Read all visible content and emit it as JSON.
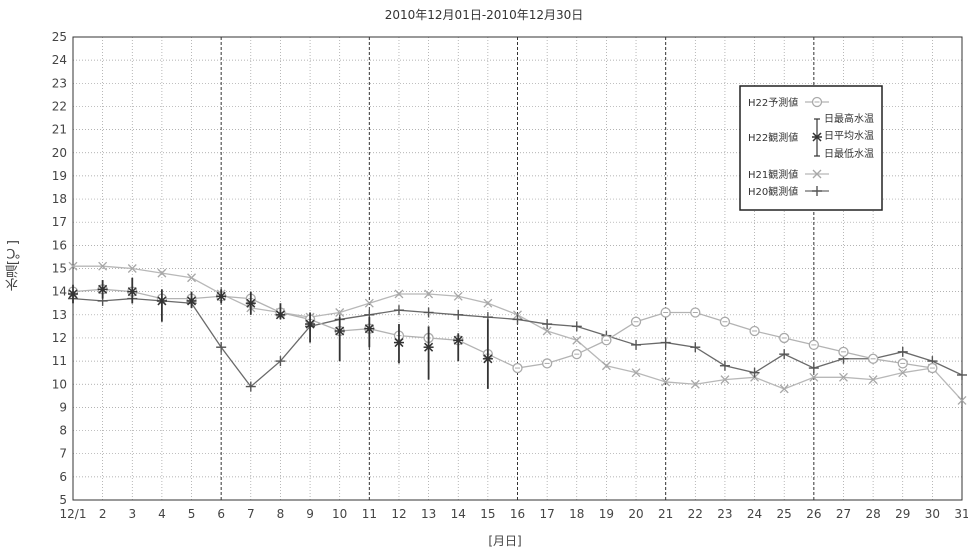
{
  "chart_data": {
    "type": "line",
    "title": "2010年12月01日-2010年12月30日",
    "xlabel": "[月日]",
    "ylabel": "水温[℃]",
    "ylim": [
      5,
      25
    ],
    "yticks": [
      5,
      6,
      7,
      8,
      9,
      10,
      11,
      12,
      13,
      14,
      15,
      16,
      17,
      18,
      19,
      20,
      21,
      22,
      23,
      24,
      25
    ],
    "x": [
      1,
      2,
      3,
      4,
      5,
      6,
      7,
      8,
      9,
      10,
      11,
      12,
      13,
      14,
      15,
      16,
      17,
      18,
      19,
      20,
      21,
      22,
      23,
      24,
      25,
      26,
      27,
      28,
      29,
      30,
      31
    ],
    "x_tick_labels": [
      "12/1",
      "2",
      "3",
      "4",
      "5",
      "6",
      "7",
      "8",
      "9",
      "10",
      "11",
      "12",
      "13",
      "14",
      "15",
      "16",
      "17",
      "18",
      "19",
      "20",
      "21",
      "22",
      "23",
      "24",
      "25",
      "26",
      "27",
      "28",
      "29",
      "30",
      "31"
    ],
    "grid": "dotted",
    "emphasized_gridlines_x": [
      6,
      11,
      16,
      21,
      26
    ],
    "legend_position": "top-right",
    "series": [
      {
        "name": "H22予測値",
        "marker": "circle",
        "values": [
          14.0,
          14.1,
          14.0,
          13.7,
          13.7,
          13.8,
          13.7,
          13.1,
          12.8,
          12.3,
          12.4,
          12.1,
          12.0,
          11.9,
          11.3,
          10.7,
          10.9,
          11.3,
          11.9,
          12.7,
          13.1,
          13.1,
          12.7,
          12.3,
          12.0,
          11.7,
          11.4,
          11.1,
          10.9,
          10.7,
          null
        ]
      },
      {
        "name": "H22観測値",
        "marker": "asterisk",
        "legend_notes": [
          "日最高水温",
          "日平均水温",
          "日最低水温"
        ],
        "values": [
          13.9,
          14.1,
          14.0,
          13.6,
          13.6,
          13.8,
          13.5,
          13.0,
          12.6,
          12.3,
          12.4,
          11.8,
          11.6,
          11.9,
          11.1,
          null,
          null,
          null,
          null,
          null,
          null,
          null,
          null,
          null,
          null,
          null,
          null,
          null,
          null,
          null,
          null
        ],
        "max": [
          14.3,
          14.5,
          14.6,
          14.1,
          14.0,
          14.1,
          14.0,
          13.5,
          13.1,
          12.9,
          12.9,
          12.6,
          12.5,
          12.2,
          12.8,
          null,
          null,
          null,
          null,
          null,
          null,
          null,
          null,
          null,
          null,
          null,
          null,
          null,
          null,
          null,
          null
        ],
        "min": [
          13.5,
          13.7,
          13.5,
          12.7,
          13.3,
          13.5,
          13.0,
          12.8,
          11.8,
          11.0,
          11.6,
          10.9,
          10.2,
          11.0,
          9.8,
          null,
          null,
          null,
          null,
          null,
          null,
          null,
          null,
          null,
          null,
          null,
          null,
          null,
          null,
          null,
          null
        ]
      },
      {
        "name": "H21観測値",
        "marker": "x",
        "values": [
          15.1,
          15.1,
          15.0,
          14.8,
          14.6,
          13.9,
          13.3,
          13.1,
          12.9,
          13.1,
          13.5,
          13.9,
          13.9,
          13.8,
          13.5,
          13.0,
          12.3,
          11.9,
          10.8,
          10.5,
          10.1,
          10.0,
          10.2,
          10.3,
          9.8,
          10.3,
          10.3,
          10.2,
          10.5,
          10.7,
          9.3
        ]
      },
      {
        "name": "H20観測値",
        "marker": "plus",
        "values": [
          13.7,
          13.6,
          13.7,
          13.6,
          13.5,
          11.6,
          9.9,
          11.0,
          12.5,
          12.8,
          13.0,
          13.2,
          13.1,
          13.0,
          12.9,
          12.8,
          12.6,
          12.5,
          12.1,
          11.7,
          11.8,
          11.6,
          10.8,
          10.5,
          11.3,
          10.7,
          11.1,
          11.1,
          11.4,
          11.0,
          10.4
        ]
      }
    ]
  }
}
